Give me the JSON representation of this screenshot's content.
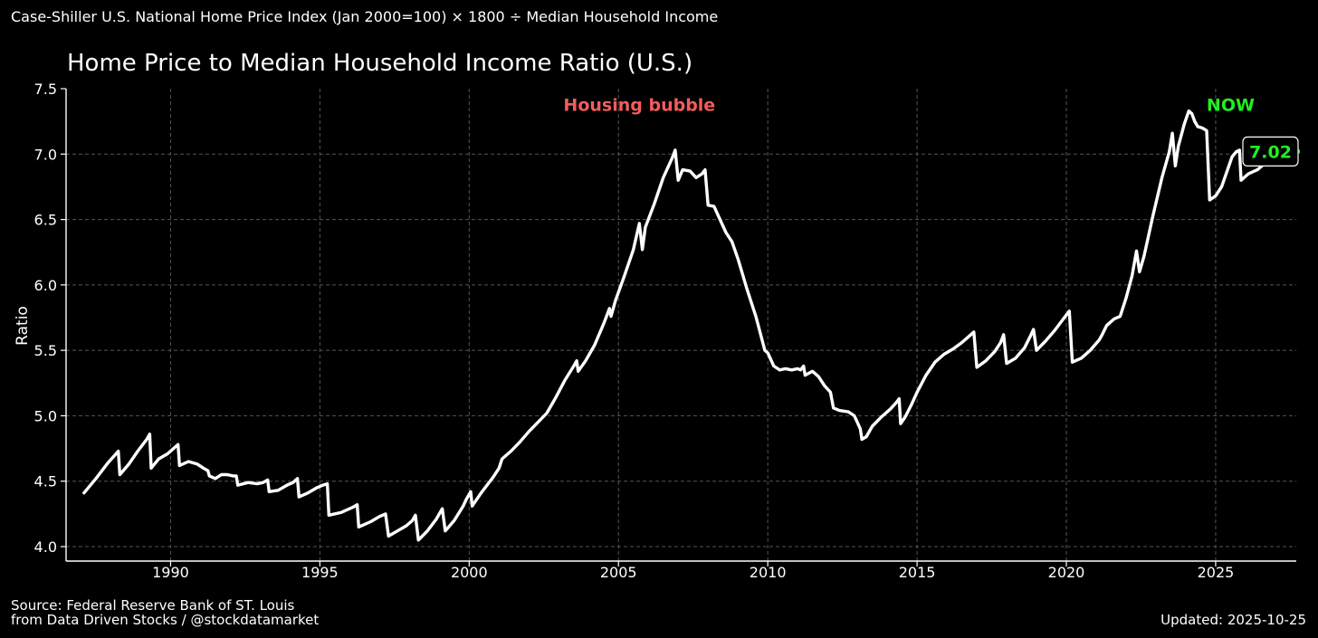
{
  "header": {
    "formula": "Case-Shiller U.S. National Home Price Index (Jan 2000=100) × 1800 ÷ Median Household Income"
  },
  "footer": {
    "source_line1": "Source: Federal Reserve Bank of ST. Louis",
    "source_line2": "from Data Driven Stocks / @stockdatamarket",
    "updated": "Updated: 2025-10-25"
  },
  "colors": {
    "background": "#000000",
    "line": "#ffffff",
    "grid": "#555555",
    "bubble_annotation": "#f25c5c",
    "now_annotation": "#22ee22"
  },
  "chart_data": {
    "type": "line",
    "title": "Home Price to Median Household Income Ratio (U.S.)",
    "xlabel": "",
    "ylabel": "Ratio",
    "xlim": [
      1986.5,
      2027.7
    ],
    "ylim": [
      3.9,
      7.5
    ],
    "x_ticks": [
      1990,
      1995,
      2000,
      2005,
      2010,
      2015,
      2020,
      2025
    ],
    "x_tick_labels": [
      "1990",
      "1995",
      "2000",
      "2005",
      "2010",
      "2015",
      "2020",
      "2025"
    ],
    "y_ticks": [
      4.0,
      4.5,
      5.0,
      5.5,
      6.0,
      6.5,
      7.0,
      7.5
    ],
    "y_tick_labels": [
      "4.0",
      "4.5",
      "5.0",
      "5.5",
      "6.0",
      "6.5",
      "7.0",
      "7.5"
    ],
    "grid": true,
    "annotations": [
      {
        "text": "Housing bubble",
        "x": 2005.7,
        "y": 7.38,
        "color": "#f25c5c"
      },
      {
        "text": "NOW",
        "x": 2025.5,
        "y": 7.38,
        "color": "#22ee22"
      }
    ],
    "last_value_label": "7.02",
    "series": [
      {
        "points": [
          [
            1987.1,
            4.41
          ],
          [
            1987.5,
            4.52
          ],
          [
            1987.9,
            4.64
          ],
          [
            1988.1,
            4.69
          ],
          [
            1988.25,
            4.73
          ],
          [
            1988.3,
            4.55
          ],
          [
            1988.6,
            4.63
          ],
          [
            1988.9,
            4.73
          ],
          [
            1989.2,
            4.82
          ],
          [
            1989.3,
            4.86
          ],
          [
            1989.35,
            4.6
          ],
          [
            1989.6,
            4.67
          ],
          [
            1989.9,
            4.71
          ],
          [
            1990.1,
            4.75
          ],
          [
            1990.25,
            4.78
          ],
          [
            1990.3,
            4.62
          ],
          [
            1990.6,
            4.65
          ],
          [
            1990.9,
            4.63
          ],
          [
            1991.1,
            4.6
          ],
          [
            1991.25,
            4.58
          ],
          [
            1991.3,
            4.54
          ],
          [
            1991.5,
            4.52
          ],
          [
            1991.7,
            4.55
          ],
          [
            1991.9,
            4.55
          ],
          [
            1992.1,
            4.54
          ],
          [
            1992.2,
            4.54
          ],
          [
            1992.25,
            4.47
          ],
          [
            1992.6,
            4.49
          ],
          [
            1992.9,
            4.48
          ],
          [
            1993.1,
            4.49
          ],
          [
            1993.25,
            4.51
          ],
          [
            1993.3,
            4.42
          ],
          [
            1993.6,
            4.43
          ],
          [
            1993.9,
            4.47
          ],
          [
            1994.1,
            4.49
          ],
          [
            1994.25,
            4.52
          ],
          [
            1994.3,
            4.38
          ],
          [
            1994.6,
            4.41
          ],
          [
            1994.9,
            4.45
          ],
          [
            1995.1,
            4.47
          ],
          [
            1995.25,
            4.48
          ],
          [
            1995.3,
            4.24
          ],
          [
            1995.7,
            4.26
          ],
          [
            1996.1,
            4.3
          ],
          [
            1996.25,
            4.32
          ],
          [
            1996.3,
            4.15
          ],
          [
            1996.7,
            4.19
          ],
          [
            1997.0,
            4.23
          ],
          [
            1997.2,
            4.25
          ],
          [
            1997.3,
            4.08
          ],
          [
            1997.6,
            4.12
          ],
          [
            1997.9,
            4.16
          ],
          [
            1998.1,
            4.2
          ],
          [
            1998.2,
            4.24
          ],
          [
            1998.3,
            4.05
          ],
          [
            1998.6,
            4.12
          ],
          [
            1998.9,
            4.21
          ],
          [
            1999.0,
            4.25
          ],
          [
            1999.1,
            4.29
          ],
          [
            1999.2,
            4.12
          ],
          [
            1999.5,
            4.2
          ],
          [
            1999.8,
            4.31
          ],
          [
            1999.9,
            4.36
          ],
          [
            2000.05,
            4.42
          ],
          [
            2000.1,
            4.31
          ],
          [
            2000.4,
            4.41
          ],
          [
            2000.8,
            4.53
          ],
          [
            2001.0,
            4.6
          ],
          [
            2001.1,
            4.67
          ],
          [
            2001.4,
            4.73
          ],
          [
            2001.7,
            4.8
          ],
          [
            2002.0,
            4.88
          ],
          [
            2002.3,
            4.95
          ],
          [
            2002.6,
            5.02
          ],
          [
            2002.9,
            5.14
          ],
          [
            2003.2,
            5.27
          ],
          [
            2003.5,
            5.38
          ],
          [
            2003.6,
            5.42
          ],
          [
            2003.65,
            5.34
          ],
          [
            2003.9,
            5.42
          ],
          [
            2004.2,
            5.54
          ],
          [
            2004.5,
            5.7
          ],
          [
            2004.6,
            5.76
          ],
          [
            2004.7,
            5.82
          ],
          [
            2004.75,
            5.76
          ],
          [
            2004.9,
            5.88
          ],
          [
            2005.2,
            6.07
          ],
          [
            2005.5,
            6.27
          ],
          [
            2005.7,
            6.47
          ],
          [
            2005.8,
            6.27
          ],
          [
            2005.9,
            6.44
          ],
          [
            2006.2,
            6.62
          ],
          [
            2006.5,
            6.82
          ],
          [
            2006.8,
            6.97
          ],
          [
            2006.9,
            7.03
          ],
          [
            2007.0,
            6.8
          ],
          [
            2007.15,
            6.88
          ],
          [
            2007.4,
            6.87
          ],
          [
            2007.6,
            6.82
          ],
          [
            2007.8,
            6.85
          ],
          [
            2007.9,
            6.88
          ],
          [
            2008.0,
            6.61
          ],
          [
            2008.2,
            6.6
          ],
          [
            2008.4,
            6.5
          ],
          [
            2008.6,
            6.4
          ],
          [
            2008.8,
            6.33
          ],
          [
            2009.0,
            6.2
          ],
          [
            2009.3,
            5.97
          ],
          [
            2009.6,
            5.76
          ],
          [
            2009.9,
            5.5
          ],
          [
            2010.0,
            5.48
          ],
          [
            2010.2,
            5.38
          ],
          [
            2010.4,
            5.35
          ],
          [
            2010.6,
            5.36
          ],
          [
            2010.8,
            5.35
          ],
          [
            2011.0,
            5.36
          ],
          [
            2011.1,
            5.35
          ],
          [
            2011.2,
            5.38
          ],
          [
            2011.25,
            5.31
          ],
          [
            2011.5,
            5.34
          ],
          [
            2011.7,
            5.3
          ],
          [
            2011.9,
            5.23
          ],
          [
            2012.1,
            5.18
          ],
          [
            2012.2,
            5.06
          ],
          [
            2012.4,
            5.04
          ],
          [
            2012.7,
            5.03
          ],
          [
            2012.9,
            5.0
          ],
          [
            2013.0,
            4.95
          ],
          [
            2013.1,
            4.9
          ],
          [
            2013.15,
            4.82
          ],
          [
            2013.3,
            4.84
          ],
          [
            2013.5,
            4.92
          ],
          [
            2013.8,
            4.99
          ],
          [
            2014.1,
            5.05
          ],
          [
            2014.3,
            5.1
          ],
          [
            2014.4,
            5.13
          ],
          [
            2014.45,
            4.94
          ],
          [
            2014.6,
            4.99
          ],
          [
            2014.8,
            5.08
          ],
          [
            2015.0,
            5.18
          ],
          [
            2015.3,
            5.31
          ],
          [
            2015.6,
            5.41
          ],
          [
            2015.9,
            5.47
          ],
          [
            2016.2,
            5.51
          ],
          [
            2016.5,
            5.56
          ],
          [
            2016.8,
            5.62
          ],
          [
            2016.9,
            5.64
          ],
          [
            2017.0,
            5.37
          ],
          [
            2017.3,
            5.42
          ],
          [
            2017.6,
            5.49
          ],
          [
            2017.8,
            5.56
          ],
          [
            2017.9,
            5.62
          ],
          [
            2018.0,
            5.4
          ],
          [
            2018.3,
            5.44
          ],
          [
            2018.6,
            5.52
          ],
          [
            2018.8,
            5.61
          ],
          [
            2018.9,
            5.66
          ],
          [
            2019.0,
            5.5
          ],
          [
            2019.3,
            5.57
          ],
          [
            2019.6,
            5.65
          ],
          [
            2019.9,
            5.74
          ],
          [
            2020.1,
            5.8
          ],
          [
            2020.2,
            5.41
          ],
          [
            2020.5,
            5.44
          ],
          [
            2020.8,
            5.5
          ],
          [
            2021.1,
            5.58
          ],
          [
            2021.2,
            5.62
          ],
          [
            2021.35,
            5.69
          ],
          [
            2021.6,
            5.74
          ],
          [
            2021.8,
            5.76
          ],
          [
            2022.0,
            5.9
          ],
          [
            2022.2,
            6.07
          ],
          [
            2022.35,
            6.26
          ],
          [
            2022.45,
            6.1
          ],
          [
            2022.6,
            6.22
          ],
          [
            2022.9,
            6.53
          ],
          [
            2023.2,
            6.82
          ],
          [
            2023.45,
            7.02
          ],
          [
            2023.55,
            7.16
          ],
          [
            2023.65,
            6.91
          ],
          [
            2023.75,
            7.06
          ],
          [
            2023.95,
            7.23
          ],
          [
            2024.1,
            7.33
          ],
          [
            2024.2,
            7.31
          ],
          [
            2024.3,
            7.25
          ],
          [
            2024.4,
            7.21
          ],
          [
            2024.55,
            7.2
          ],
          [
            2024.7,
            7.18
          ],
          [
            2024.8,
            6.65
          ],
          [
            2025.0,
            6.68
          ],
          [
            2025.2,
            6.75
          ],
          [
            2025.4,
            6.88
          ],
          [
            2025.55,
            6.98
          ],
          [
            2025.7,
            7.02
          ],
          [
            2025.8,
            7.03
          ],
          [
            2025.85,
            6.8
          ],
          [
            2026.1,
            6.85
          ],
          [
            2026.4,
            6.88
          ],
          [
            2026.7,
            6.94
          ],
          [
            2026.95,
            7.01
          ],
          [
            2027.1,
            7.07
          ],
          [
            2027.2,
            7.09
          ],
          [
            2027.35,
            7.05
          ],
          [
            2027.55,
            7.02
          ],
          [
            2027.7,
            7.02
          ]
        ]
      }
    ]
  }
}
